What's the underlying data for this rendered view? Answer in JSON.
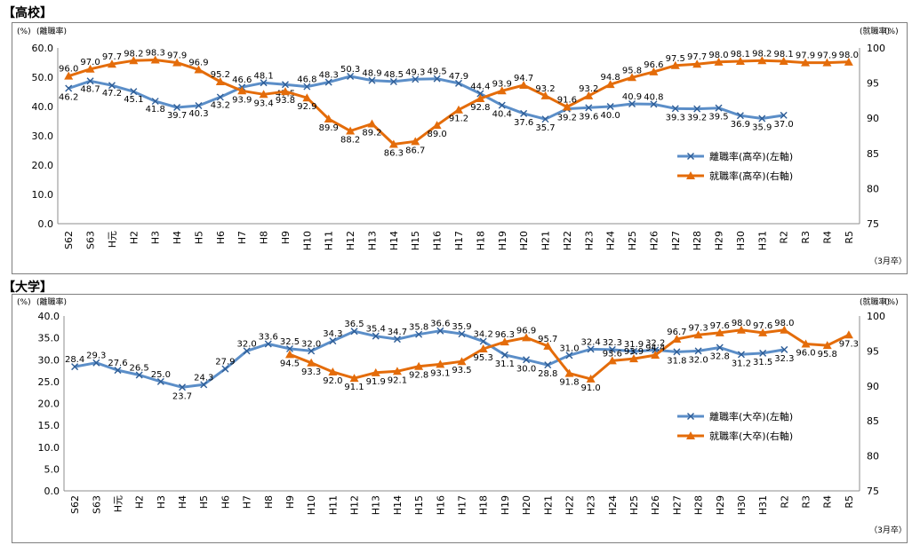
{
  "sections": [
    {
      "title": "【高校】",
      "note": "（3月卒）"
    },
    {
      "title": "【大学】",
      "note": "（3月卒）"
    }
  ],
  "colors": {
    "left_series": "#5b8ec8",
    "right_series": "#e46c0a",
    "grid": "#d9d9d9"
  },
  "chart_data": [
    {
      "type": "line",
      "title": "【高校】",
      "categories": [
        "S62",
        "S63",
        "H元",
        "H2",
        "H3",
        "H4",
        "H5",
        "H6",
        "H7",
        "H8",
        "H9",
        "H10",
        "H11",
        "H12",
        "H13",
        "H14",
        "H15",
        "H16",
        "H17",
        "H18",
        "H19",
        "H20",
        "H21",
        "H22",
        "H23",
        "H24",
        "H25",
        "H26",
        "H27",
        "H28",
        "H29",
        "H30",
        "H31",
        "R2",
        "R3",
        "R4",
        "R5"
      ],
      "y_left": {
        "unit": "(%)",
        "label": "(離職率)",
        "lim": [
          0,
          60
        ],
        "ticks": [
          "0.0",
          "10.0",
          "20.0",
          "30.0",
          "40.0",
          "50.0",
          "60.0"
        ]
      },
      "y_right": {
        "unit": "(%)",
        "label": "(就職率)",
        "lim": [
          75,
          100
        ],
        "ticks": [
          "75",
          "80",
          "85",
          "90",
          "95",
          "100"
        ]
      },
      "note": "（3月卒）",
      "grid": false,
      "legend_position": "right-middle",
      "series": [
        {
          "name": "離職率(高卒)(左軸)",
          "axis": "left",
          "marker": "x",
          "values": [
            46.2,
            48.7,
            47.2,
            45.1,
            41.8,
            39.7,
            40.3,
            43.2,
            46.6,
            48.1,
            47.5,
            46.8,
            48.3,
            50.3,
            48.9,
            48.5,
            49.3,
            49.5,
            47.9,
            44.4,
            40.4,
            37.6,
            35.7,
            39.2,
            39.6,
            40.0,
            40.9,
            40.8,
            39.3,
            39.2,
            39.5,
            36.9,
            35.9,
            37.0,
            null,
            null,
            null
          ]
        },
        {
          "name": "就職率(高卒)(右軸)",
          "axis": "right",
          "marker": "triangle",
          "values": [
            96.0,
            97.0,
            97.7,
            98.2,
            98.3,
            97.9,
            96.9,
            95.2,
            93.9,
            93.4,
            93.8,
            92.9,
            89.9,
            88.2,
            89.2,
            86.3,
            86.7,
            89.0,
            91.2,
            92.8,
            93.9,
            94.7,
            93.2,
            91.6,
            93.2,
            94.8,
            95.8,
            96.6,
            97.5,
            97.7,
            98.0,
            98.1,
            98.2,
            98.1,
            97.9,
            97.9,
            98.0
          ]
        }
      ]
    },
    {
      "type": "line",
      "title": "【大学】",
      "categories": [
        "S62",
        "S63",
        "H元",
        "H2",
        "H3",
        "H4",
        "H5",
        "H6",
        "H7",
        "H8",
        "H9",
        "H10",
        "H11",
        "H12",
        "H13",
        "H14",
        "H15",
        "H16",
        "H17",
        "H18",
        "H19",
        "H20",
        "H21",
        "H22",
        "H23",
        "H24",
        "H25",
        "H26",
        "H27",
        "H28",
        "H29",
        "H30",
        "H31",
        "R2",
        "R3",
        "R4",
        "R5"
      ],
      "y_left": {
        "unit": "(%)",
        "label": "(離職率)",
        "lim": [
          0,
          40
        ],
        "ticks": [
          "0.0",
          "5.0",
          "10.0",
          "15.0",
          "20.0",
          "25.0",
          "30.0",
          "35.0",
          "40.0"
        ]
      },
      "y_right": {
        "unit": "(%)",
        "label": "(就職率)",
        "lim": [
          75,
          100
        ],
        "ticks": [
          "75",
          "80",
          "85",
          "90",
          "95",
          "100"
        ]
      },
      "note": "（3月卒）",
      "grid": false,
      "legend_position": "right-middle",
      "series": [
        {
          "name": "離職率(大卒)(左軸)",
          "axis": "left",
          "marker": "x",
          "values": [
            28.4,
            29.3,
            27.6,
            26.5,
            25.0,
            23.7,
            24.3,
            27.9,
            32.0,
            33.6,
            32.5,
            32.0,
            34.3,
            36.5,
            35.4,
            34.7,
            35.8,
            36.6,
            35.9,
            34.2,
            31.1,
            30.0,
            28.8,
            31.0,
            32.4,
            32.3,
            31.9,
            32.2,
            31.8,
            32.0,
            32.8,
            31.2,
            31.5,
            32.3,
            null,
            null,
            null
          ]
        },
        {
          "name": "就職率(大卒)(右軸)",
          "axis": "right",
          "marker": "triangle",
          "values": [
            null,
            null,
            null,
            null,
            null,
            null,
            null,
            null,
            null,
            null,
            94.5,
            93.3,
            92.0,
            91.1,
            91.9,
            92.1,
            92.8,
            93.1,
            93.5,
            95.3,
            96.3,
            96.9,
            95.7,
            91.8,
            91.0,
            93.6,
            93.9,
            94.4,
            96.7,
            97.3,
            97.6,
            98.0,
            97.6,
            98.0,
            96.0,
            95.8,
            97.3
          ]
        }
      ]
    }
  ]
}
